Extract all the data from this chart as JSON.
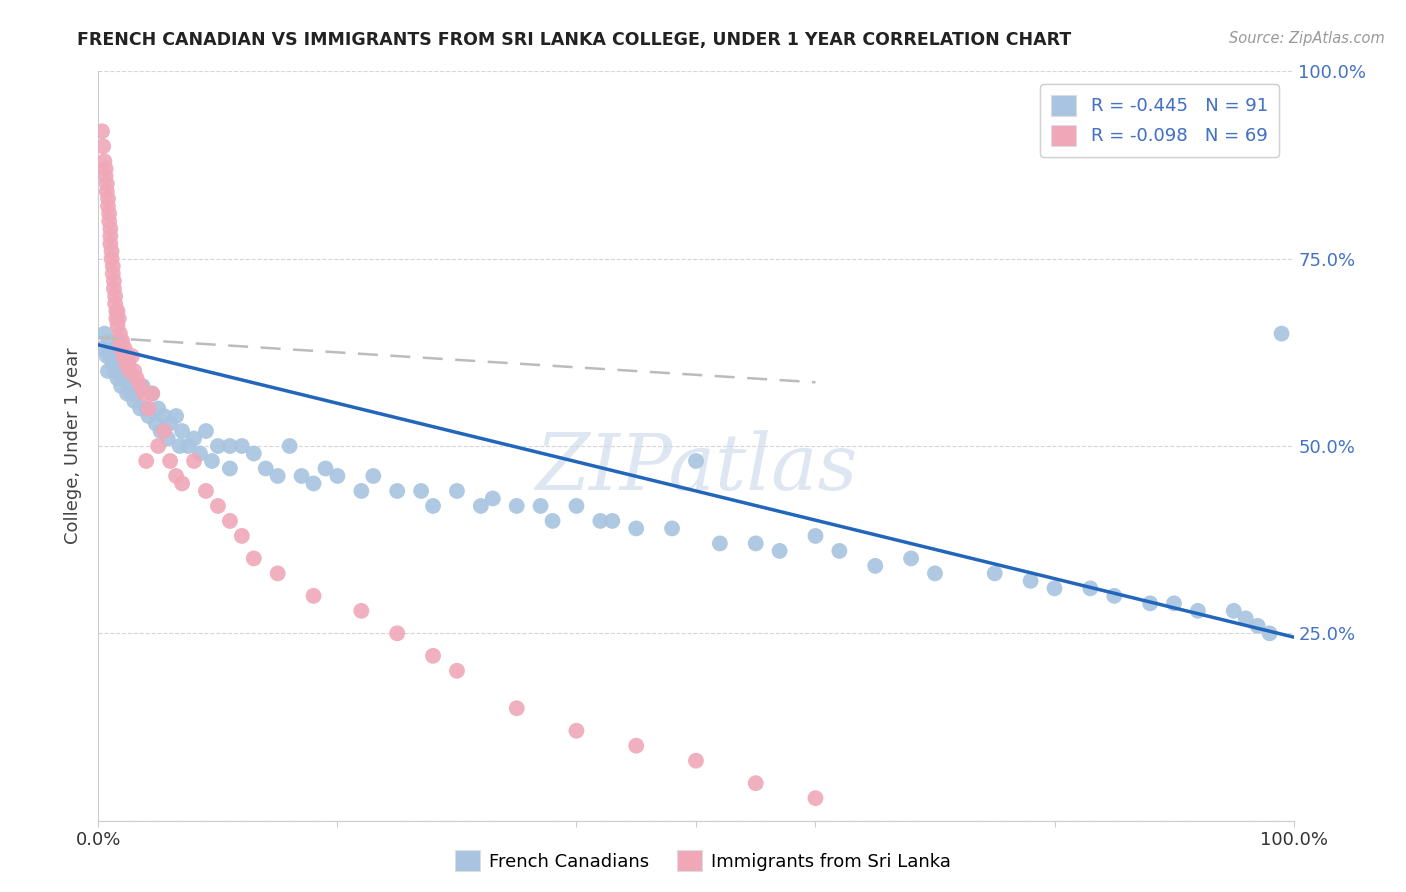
{
  "title": "FRENCH CANADIAN VS IMMIGRANTS FROM SRI LANKA COLLEGE, UNDER 1 YEAR CORRELATION CHART",
  "source": "Source: ZipAtlas.com",
  "ylabel": "College, Under 1 year",
  "blue_color": "#a8c4e0",
  "pink_color": "#f0a8b8",
  "blue_line_color": "#2266bb",
  "pink_line_color": "#cc6677",
  "watermark": "ZIPatlas",
  "blue_R": "-0.445",
  "blue_N": "91",
  "pink_R": "-0.098",
  "pink_N": "69",
  "blue_scatter_x": [
    0.003,
    0.005,
    0.007,
    0.008,
    0.009,
    0.01,
    0.012,
    0.013,
    0.014,
    0.015,
    0.016,
    0.017,
    0.018,
    0.019,
    0.02,
    0.022,
    0.024,
    0.025,
    0.027,
    0.028,
    0.03,
    0.032,
    0.035,
    0.037,
    0.04,
    0.042,
    0.045,
    0.048,
    0.05,
    0.052,
    0.055,
    0.058,
    0.06,
    0.065,
    0.068,
    0.07,
    0.075,
    0.08,
    0.085,
    0.09,
    0.095,
    0.1,
    0.11,
    0.11,
    0.12,
    0.13,
    0.14,
    0.15,
    0.16,
    0.17,
    0.18,
    0.19,
    0.2,
    0.22,
    0.23,
    0.25,
    0.27,
    0.28,
    0.3,
    0.32,
    0.33,
    0.35,
    0.37,
    0.38,
    0.4,
    0.42,
    0.43,
    0.45,
    0.48,
    0.5,
    0.52,
    0.55,
    0.57,
    0.6,
    0.62,
    0.65,
    0.68,
    0.7,
    0.75,
    0.78,
    0.8,
    0.83,
    0.85,
    0.88,
    0.9,
    0.92,
    0.95,
    0.96,
    0.97,
    0.98,
    0.99
  ],
  "blue_scatter_y": [
    0.63,
    0.65,
    0.62,
    0.6,
    0.64,
    0.62,
    0.61,
    0.63,
    0.6,
    0.62,
    0.59,
    0.61,
    0.6,
    0.58,
    0.6,
    0.59,
    0.57,
    0.6,
    0.58,
    0.57,
    0.56,
    0.57,
    0.55,
    0.58,
    0.55,
    0.54,
    0.57,
    0.53,
    0.55,
    0.52,
    0.54,
    0.51,
    0.53,
    0.54,
    0.5,
    0.52,
    0.5,
    0.51,
    0.49,
    0.52,
    0.48,
    0.5,
    0.5,
    0.47,
    0.5,
    0.49,
    0.47,
    0.46,
    0.5,
    0.46,
    0.45,
    0.47,
    0.46,
    0.44,
    0.46,
    0.44,
    0.44,
    0.42,
    0.44,
    0.42,
    0.43,
    0.42,
    0.42,
    0.4,
    0.42,
    0.4,
    0.4,
    0.39,
    0.39,
    0.48,
    0.37,
    0.37,
    0.36,
    0.38,
    0.36,
    0.34,
    0.35,
    0.33,
    0.33,
    0.32,
    0.31,
    0.31,
    0.3,
    0.29,
    0.29,
    0.28,
    0.28,
    0.27,
    0.26,
    0.25,
    0.65
  ],
  "pink_scatter_x": [
    0.003,
    0.004,
    0.005,
    0.006,
    0.006,
    0.007,
    0.007,
    0.008,
    0.008,
    0.009,
    0.009,
    0.01,
    0.01,
    0.01,
    0.011,
    0.011,
    0.012,
    0.012,
    0.013,
    0.013,
    0.014,
    0.014,
    0.015,
    0.015,
    0.016,
    0.016,
    0.017,
    0.018,
    0.018,
    0.019,
    0.02,
    0.02,
    0.021,
    0.022,
    0.023,
    0.024,
    0.025,
    0.026,
    0.028,
    0.03,
    0.032,
    0.035,
    0.038,
    0.04,
    0.042,
    0.045,
    0.05,
    0.055,
    0.06,
    0.065,
    0.07,
    0.08,
    0.09,
    0.1,
    0.11,
    0.12,
    0.13,
    0.15,
    0.18,
    0.22,
    0.25,
    0.28,
    0.3,
    0.35,
    0.4,
    0.45,
    0.5,
    0.55,
    0.6
  ],
  "pink_scatter_y": [
    0.92,
    0.9,
    0.88,
    0.87,
    0.86,
    0.85,
    0.84,
    0.83,
    0.82,
    0.81,
    0.8,
    0.79,
    0.78,
    0.77,
    0.76,
    0.75,
    0.74,
    0.73,
    0.72,
    0.71,
    0.7,
    0.69,
    0.68,
    0.67,
    0.68,
    0.66,
    0.67,
    0.65,
    0.64,
    0.63,
    0.63,
    0.64,
    0.62,
    0.63,
    0.61,
    0.62,
    0.61,
    0.6,
    0.62,
    0.6,
    0.59,
    0.58,
    0.57,
    0.48,
    0.55,
    0.57,
    0.5,
    0.52,
    0.48,
    0.46,
    0.45,
    0.48,
    0.44,
    0.42,
    0.4,
    0.38,
    0.35,
    0.33,
    0.3,
    0.28,
    0.25,
    0.22,
    0.2,
    0.15,
    0.12,
    0.1,
    0.08,
    0.05,
    0.03
  ],
  "blue_trend_x": [
    0.0,
    1.0
  ],
  "blue_trend_y": [
    0.635,
    0.245
  ],
  "pink_trend_x": [
    0.0,
    0.6
  ],
  "pink_trend_y": [
    0.645,
    0.585
  ],
  "xlim": [
    0,
    1
  ],
  "ylim": [
    0,
    1
  ],
  "ytick_vals": [
    0.0,
    0.25,
    0.5,
    0.75,
    1.0
  ],
  "ytick_right_labels": [
    "",
    "25.0%",
    "50.0%",
    "75.0%",
    "100.0%"
  ],
  "xtick_vals": [
    0.0,
    0.2,
    0.4,
    0.5,
    0.6,
    0.8,
    1.0
  ],
  "grid_color": "#cccccc",
  "legend_top_right": true,
  "legend_bottom_center": true
}
